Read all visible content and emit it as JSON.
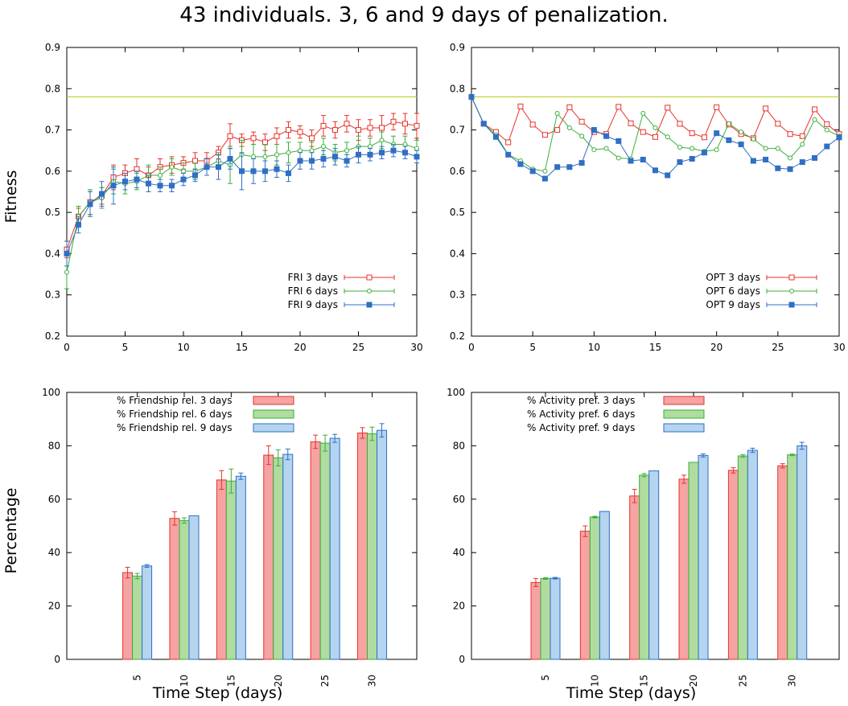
{
  "suptitle": "43 individuals. 3, 6 and 9 days of penalization.",
  "colors": {
    "red": "#e8322b",
    "green": "#3aae3a",
    "blue": "#2f6fc4",
    "red_fill": "#f5a3a3",
    "green_fill": "#b0dca0",
    "blue_fill": "#b4d4f0",
    "ref_line": "#b5cc22"
  },
  "chart_data": [
    {
      "id": "fri",
      "type": "line",
      "xlim": [
        0,
        30
      ],
      "ylim": [
        0.2,
        0.9
      ],
      "xticks": [
        0,
        5,
        10,
        15,
        20,
        25,
        30
      ],
      "yticks": [
        0.2,
        0.3,
        0.4,
        0.5,
        0.6,
        0.7,
        0.8,
        0.9
      ],
      "ylabel": "Fitness",
      "xlabel": "",
      "reference_line": 0.78,
      "legend": "bottom-right",
      "x": [
        0,
        1,
        2,
        3,
        4,
        5,
        6,
        7,
        8,
        9,
        10,
        11,
        12,
        13,
        14,
        15,
        16,
        17,
        18,
        19,
        20,
        21,
        22,
        23,
        24,
        25,
        26,
        27,
        28,
        29,
        30
      ],
      "series": [
        {
          "name": "FRI 3 days",
          "color": "red",
          "marker": "open-square",
          "values": [
            0.41,
            0.49,
            0.525,
            0.54,
            0.585,
            0.595,
            0.605,
            0.59,
            0.61,
            0.615,
            0.62,
            0.625,
            0.625,
            0.645,
            0.685,
            0.675,
            0.68,
            0.67,
            0.685,
            0.7,
            0.695,
            0.68,
            0.71,
            0.7,
            0.715,
            0.7,
            0.705,
            0.705,
            0.72,
            0.715,
            0.71
          ],
          "err": [
            0.02,
            0.02,
            0.03,
            0.02,
            0.03,
            0.02,
            0.025,
            0.02,
            0.02,
            0.02,
            0.015,
            0.02,
            0.02,
            0.015,
            0.03,
            0.015,
            0.015,
            0.02,
            0.02,
            0.02,
            0.015,
            0.02,
            0.025,
            0.02,
            0.02,
            0.025,
            0.02,
            0.03,
            0.02,
            0.025,
            0.03
          ]
        },
        {
          "name": "FRI 6 days",
          "color": "green",
          "marker": "open-circle",
          "values": [
            0.355,
            0.49,
            0.525,
            0.535,
            0.575,
            0.57,
            0.575,
            0.59,
            0.59,
            0.61,
            0.6,
            0.6,
            0.61,
            0.625,
            0.615,
            0.64,
            0.635,
            0.635,
            0.64,
            0.645,
            0.65,
            0.65,
            0.66,
            0.645,
            0.65,
            0.66,
            0.66,
            0.675,
            0.665,
            0.665,
            0.655
          ],
          "err": [
            0.04,
            0.025,
            0.03,
            0.025,
            0.03,
            0.025,
            0.02,
            0.025,
            0.02,
            0.02,
            0.02,
            0.02,
            0.02,
            0.02,
            0.045,
            0.035,
            0.03,
            0.03,
            0.025,
            0.025,
            0.02,
            0.02,
            0.02,
            0.02,
            0.02,
            0.025,
            0.02,
            0.02,
            0.02,
            0.02,
            0.02
          ]
        },
        {
          "name": "FRI 9 days",
          "color": "blue",
          "marker": "filled-square",
          "values": [
            0.4,
            0.47,
            0.52,
            0.545,
            0.565,
            0.575,
            0.58,
            0.57,
            0.565,
            0.565,
            0.58,
            0.59,
            0.61,
            0.61,
            0.63,
            0.6,
            0.6,
            0.6,
            0.605,
            0.595,
            0.625,
            0.625,
            0.63,
            0.635,
            0.625,
            0.64,
            0.64,
            0.645,
            0.65,
            0.645,
            0.635
          ],
          "err": [
            0.03,
            0.02,
            0.03,
            0.03,
            0.045,
            0.02,
            0.02,
            0.02,
            0.015,
            0.015,
            0.015,
            0.015,
            0.02,
            0.03,
            0.025,
            0.045,
            0.03,
            0.025,
            0.02,
            0.02,
            0.02,
            0.02,
            0.02,
            0.02,
            0.015,
            0.02,
            0.015,
            0.015,
            0.015,
            0.015,
            0.015
          ]
        }
      ]
    },
    {
      "id": "opt",
      "type": "line",
      "xlim": [
        0,
        30
      ],
      "ylim": [
        0.2,
        0.9
      ],
      "xticks": [
        0,
        5,
        10,
        15,
        20,
        25,
        30
      ],
      "yticks": [
        0.2,
        0.3,
        0.4,
        0.5,
        0.6,
        0.7,
        0.8,
        0.9
      ],
      "ylabel": "",
      "xlabel": "",
      "reference_line": 0.78,
      "legend": "bottom-right",
      "x": [
        0,
        1,
        2,
        3,
        4,
        5,
        6,
        7,
        8,
        9,
        10,
        11,
        12,
        13,
        14,
        15,
        16,
        17,
        18,
        19,
        20,
        21,
        22,
        23,
        24,
        25,
        26,
        27,
        28,
        29,
        30
      ],
      "series": [
        {
          "name": "OPT 3 days",
          "color": "red",
          "marker": "open-square",
          "values": [
            0.78,
            0.715,
            0.695,
            0.67,
            0.757,
            0.713,
            0.688,
            0.7,
            0.755,
            0.72,
            0.695,
            0.69,
            0.756,
            0.716,
            0.695,
            0.683,
            0.754,
            0.715,
            0.692,
            0.682,
            0.755,
            0.713,
            0.69,
            0.68,
            0.752,
            0.715,
            0.69,
            0.685,
            0.75,
            0.714,
            0.69
          ],
          "err": [
            0,
            0,
            0,
            0,
            0,
            0,
            0,
            0,
            0,
            0,
            0,
            0,
            0,
            0,
            0,
            0,
            0,
            0,
            0,
            0,
            0,
            0,
            0,
            0,
            0,
            0,
            0,
            0,
            0,
            0,
            0
          ]
        },
        {
          "name": "OPT 6 days",
          "color": "green",
          "marker": "open-circle",
          "values": [
            0.78,
            0.715,
            0.688,
            0.64,
            0.625,
            0.605,
            0.6,
            0.74,
            0.705,
            0.685,
            0.652,
            0.655,
            0.632,
            0.63,
            0.74,
            0.705,
            0.683,
            0.658,
            0.655,
            0.648,
            0.652,
            0.715,
            0.695,
            0.678,
            0.655,
            0.655,
            0.632,
            0.665,
            0.725,
            0.7,
            0.685
          ],
          "err": [
            0,
            0,
            0,
            0,
            0,
            0,
            0,
            0,
            0,
            0,
            0,
            0,
            0,
            0,
            0,
            0,
            0,
            0,
            0,
            0,
            0,
            0,
            0,
            0,
            0,
            0,
            0,
            0,
            0,
            0,
            0
          ]
        },
        {
          "name": "OPT 9 days",
          "color": "blue",
          "marker": "filled-square",
          "values": [
            0.78,
            0.715,
            0.683,
            0.64,
            0.617,
            0.6,
            0.582,
            0.61,
            0.61,
            0.62,
            0.7,
            0.685,
            0.673,
            0.625,
            0.628,
            0.602,
            0.59,
            0.622,
            0.63,
            0.645,
            0.692,
            0.675,
            0.665,
            0.625,
            0.628,
            0.607,
            0.605,
            0.622,
            0.632,
            0.66,
            0.682
          ],
          "err": [
            0,
            0,
            0,
            0,
            0,
            0,
            0,
            0,
            0,
            0,
            0,
            0,
            0,
            0,
            0,
            0,
            0,
            0,
            0,
            0,
            0,
            0,
            0,
            0,
            0,
            0,
            0,
            0,
            0,
            0,
            0
          ]
        }
      ]
    },
    {
      "id": "friendship",
      "type": "bar",
      "categories": [
        "5",
        "10",
        "15",
        "20",
        "25",
        "30"
      ],
      "ylim": [
        0,
        100
      ],
      "yticks": [
        0,
        20,
        40,
        60,
        80,
        100
      ],
      "ylabel": "Percentage",
      "xlabel": "Time Step (days)",
      "legend": "top-left",
      "series": [
        {
          "name": "% Friendship rel. 3 days",
          "color": "red",
          "values": [
            32.5,
            52.8,
            67.2,
            76.5,
            81.5,
            84.8
          ],
          "err": [
            2,
            2.5,
            3.5,
            3.5,
            2.5,
            2
          ]
        },
        {
          "name": "% Friendship rel. 6 days",
          "color": "green",
          "values": [
            31.2,
            52.0,
            66.8,
            75.5,
            81.0,
            84.5
          ],
          "err": [
            1,
            1,
            4.5,
            3,
            3,
            2.5
          ]
        },
        {
          "name": "% Friendship rel. 9 days",
          "color": "blue",
          "values": [
            35.0,
            53.8,
            68.6,
            76.8,
            82.8,
            85.8
          ],
          "err": [
            0.5,
            0,
            1.2,
            2,
            1.5,
            2.5
          ]
        }
      ]
    },
    {
      "id": "activity",
      "type": "bar",
      "categories": [
        "5",
        "10",
        "15",
        "20",
        "25",
        "30"
      ],
      "ylim": [
        0,
        100
      ],
      "yticks": [
        0,
        20,
        40,
        60,
        80,
        100
      ],
      "ylabel": "",
      "xlabel": "Time Step (days)",
      "legend": "top-left",
      "series": [
        {
          "name": "% Activity pref. 3 days",
          "color": "red",
          "values": [
            28.8,
            48.0,
            61.2,
            67.5,
            70.8,
            72.5
          ],
          "err": [
            1.5,
            2,
            2.5,
            1.5,
            1,
            0.8
          ]
        },
        {
          "name": "% Activity pref. 6 days",
          "color": "green",
          "values": [
            30.3,
            53.3,
            69.0,
            73.8,
            76.2,
            76.6
          ],
          "err": [
            0.3,
            0.3,
            0.6,
            0,
            0.5,
            0.3
          ]
        },
        {
          "name": "% Activity pref. 9 days",
          "color": "blue",
          "values": [
            30.4,
            55.4,
            70.6,
            76.4,
            78.3,
            80.0
          ],
          "err": [
            0.3,
            0,
            0,
            0.6,
            0.8,
            1.3
          ]
        }
      ]
    }
  ]
}
